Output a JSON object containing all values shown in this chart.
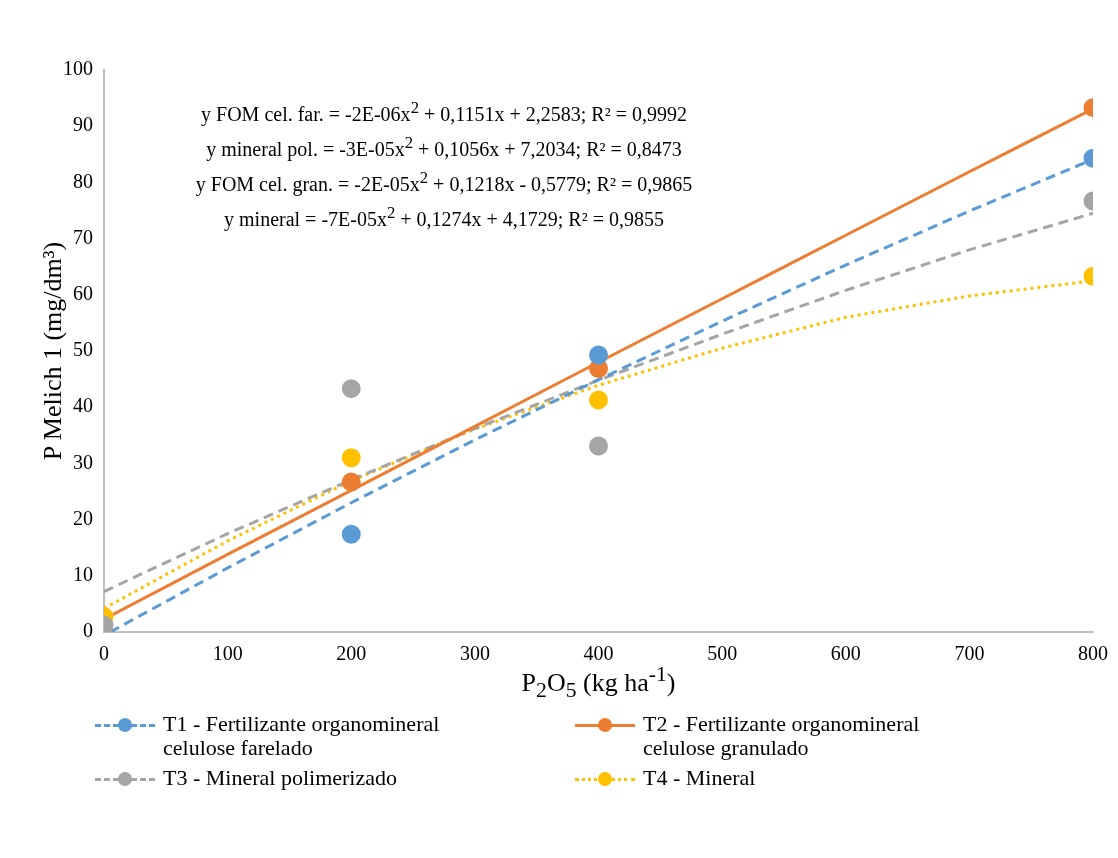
{
  "chart_data": {
    "type": "scatter",
    "xlabel": "P$_{2}$O$_{5}$ (kg ha$^{-1}$)",
    "ylabel": "P Melich 1 (mg/dm³)",
    "xlim": [
      0,
      800
    ],
    "xticks": [
      0,
      100,
      200,
      300,
      400,
      500,
      600,
      700,
      800
    ],
    "ylim": [
      0,
      100
    ],
    "yticks": [
      0,
      10,
      20,
      30,
      40,
      50,
      60,
      70,
      80,
      90,
      100
    ],
    "grid": false,
    "legend": "bottom",
    "marker": "circle",
    "annotations": [
      "y FOM cel. far. = -2E-06x$^{2}$ + 0,1151x + 2,2583; R² = 0,9992",
      "y mineral pol. = -3E-05x$^{2}$ + 0,1056x + 7,2034; R² = 0,8473",
      "y FOM cel. gran. = -2E-05x$^{2}$ + 0,1218x - 0,5779; R² = 0,9865",
      "y mineral = -7E-05x$^{2}$ + 0,1274x + 4,1729; R² = 0,9855"
    ],
    "series": [
      {
        "name": "T1 - Fertilizante organomineral celulose farelado",
        "color": "#5b9bd5",
        "line_style": "dashed",
        "x": [
          200,
          400,
          800
        ],
        "values": [
          17.4,
          49.3,
          84.3
        ]
      },
      {
        "name": "T2 - Fertilizante organomineral celulose granulado",
        "color": "#ed7d31",
        "line_style": "solid",
        "x": [
          200,
          400,
          800
        ],
        "values": [
          26.7,
          46.9,
          93.3
        ]
      },
      {
        "name": "T3 - Mineral polimerizado",
        "color": "#a5a5a5",
        "line_style": "dashed",
        "x": [
          0,
          200,
          400,
          800
        ],
        "values": [
          1.2,
          43.3,
          33.1,
          76.7
        ]
      },
      {
        "name": "T4 - Mineral",
        "color": "#ffc000",
        "line_style": "dotted",
        "x": [
          0,
          200,
          400,
          800
        ],
        "values": [
          2.7,
          31,
          41.3,
          63.3
        ]
      },
      {
        "type": "line",
        "color": "#5b9bd5",
        "line_style": "dashed",
        "marker": "none",
        "x": [
          5,
          100,
          200,
          300,
          400,
          500,
          600,
          700,
          800
        ],
        "values": [
          0,
          11.4,
          23,
          34.2,
          44.9,
          55.3,
          65.3,
          74.9,
          84.1
        ]
      },
      {
        "type": "line",
        "color": "#ed7d31",
        "line_style": "solid",
        "marker": "none",
        "x": [
          0,
          100,
          200,
          300,
          400,
          500,
          600,
          700,
          800
        ],
        "values": [
          2.3,
          13.8,
          25.2,
          36.6,
          48,
          59.3,
          70.6,
          81.9,
          93.1
        ]
      },
      {
        "type": "line",
        "color": "#a5a5a5",
        "line_style": "dashed",
        "marker": "none",
        "x": [
          0,
          100,
          200,
          300,
          400,
          500,
          600,
          700,
          800
        ],
        "values": [
          7.2,
          17.5,
          27.1,
          36.2,
          44.8,
          53,
          60.8,
          68,
          74.5
        ]
      },
      {
        "type": "line",
        "color": "#ffc000",
        "line_style": "dotted",
        "marker": "none",
        "x": [
          0,
          100,
          200,
          300,
          400,
          500,
          600,
          700,
          800
        ],
        "values": [
          4.2,
          16.2,
          26.9,
          36.1,
          43.9,
          50.5,
          56,
          59.8,
          62.5
        ]
      }
    ]
  }
}
